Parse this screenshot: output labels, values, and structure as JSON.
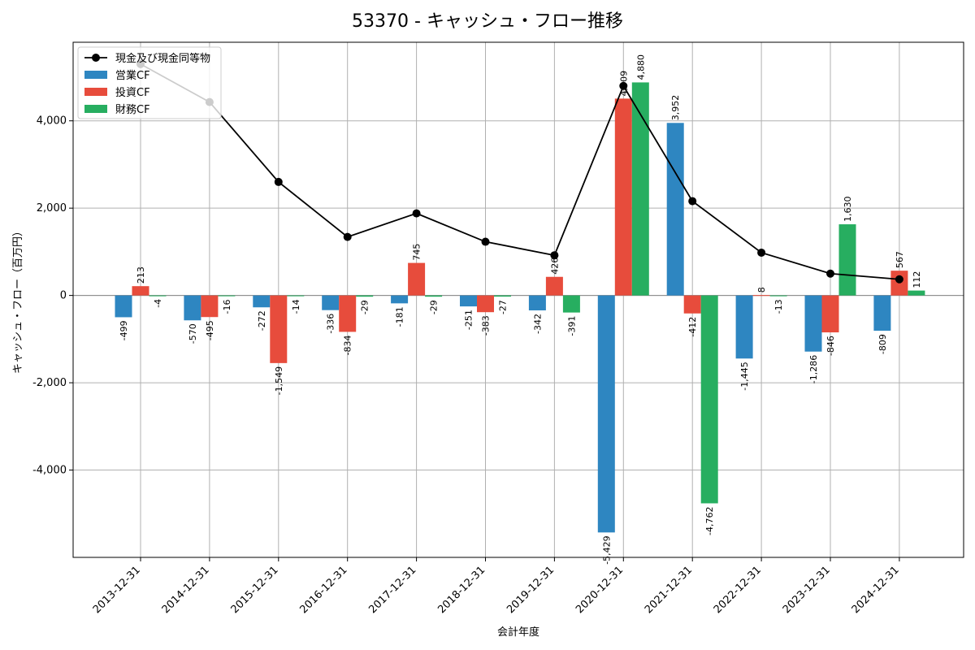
{
  "chart_data": {
    "type": "bar",
    "title": "53370 - キャッシュ・フロー推移",
    "xlabel": "会計年度",
    "ylabel": "キャッシュ・フロー（百万円）",
    "ylim": [
      -6000,
      5800
    ],
    "yticks": [
      -4000,
      -2000,
      0,
      2000,
      4000
    ],
    "ytick_labels": [
      "-4,000",
      "-2,000",
      "0",
      "2,000",
      "4,000"
    ],
    "grid": true,
    "legend_position": "top-left",
    "categories": [
      "2013-12-31",
      "2014-12-31",
      "2015-12-31",
      "2016-12-31",
      "2017-12-31",
      "2018-12-31",
      "2019-12-31",
      "2020-12-31",
      "2021-12-31",
      "2022-12-31",
      "2023-12-31",
      "2024-12-31"
    ],
    "series": [
      {
        "name": "営業CF",
        "type": "bar",
        "color": "#2e86c1",
        "values": [
          -499,
          -570,
          -272,
          -336,
          -181,
          -251,
          -342,
          -5429,
          3952,
          -1445,
          -1286,
          -809
        ],
        "labels": [
          "-499",
          "-570",
          "-272",
          "-336",
          "-181",
          "-251",
          "-342",
          "-5,429",
          "3,952",
          "-1,445",
          "-1,286",
          "-809"
        ]
      },
      {
        "name": "投資CF",
        "type": "bar",
        "color": "#e74c3c",
        "values": [
          213,
          -495,
          -1549,
          -834,
          745,
          -383,
          426,
          4509,
          -412,
          8,
          -846,
          567
        ],
        "labels": [
          "213",
          "-495",
          "-1,549",
          "-834",
          "745",
          "-383",
          "426",
          "4,509",
          "-412",
          "8",
          "-846",
          "567"
        ]
      },
      {
        "name": "財務CF",
        "type": "bar",
        "color": "#27ae60",
        "values": [
          -4,
          -16,
          -14,
          -29,
          -29,
          -27,
          -391,
          4880,
          -4762,
          -13,
          1630,
          112
        ],
        "labels": [
          "-4",
          "-16",
          "-14",
          "-29",
          "-29",
          "-27",
          "-391",
          "4,880",
          "-4,762",
          "-13",
          "1,630",
          "112"
        ]
      },
      {
        "name": "現金及び現金同等物",
        "type": "line",
        "color": "#000000",
        "values": [
          5300,
          4430,
          2600,
          1340,
          1880,
          1230,
          920,
          4800,
          2160,
          980,
          500,
          370
        ]
      }
    ]
  }
}
